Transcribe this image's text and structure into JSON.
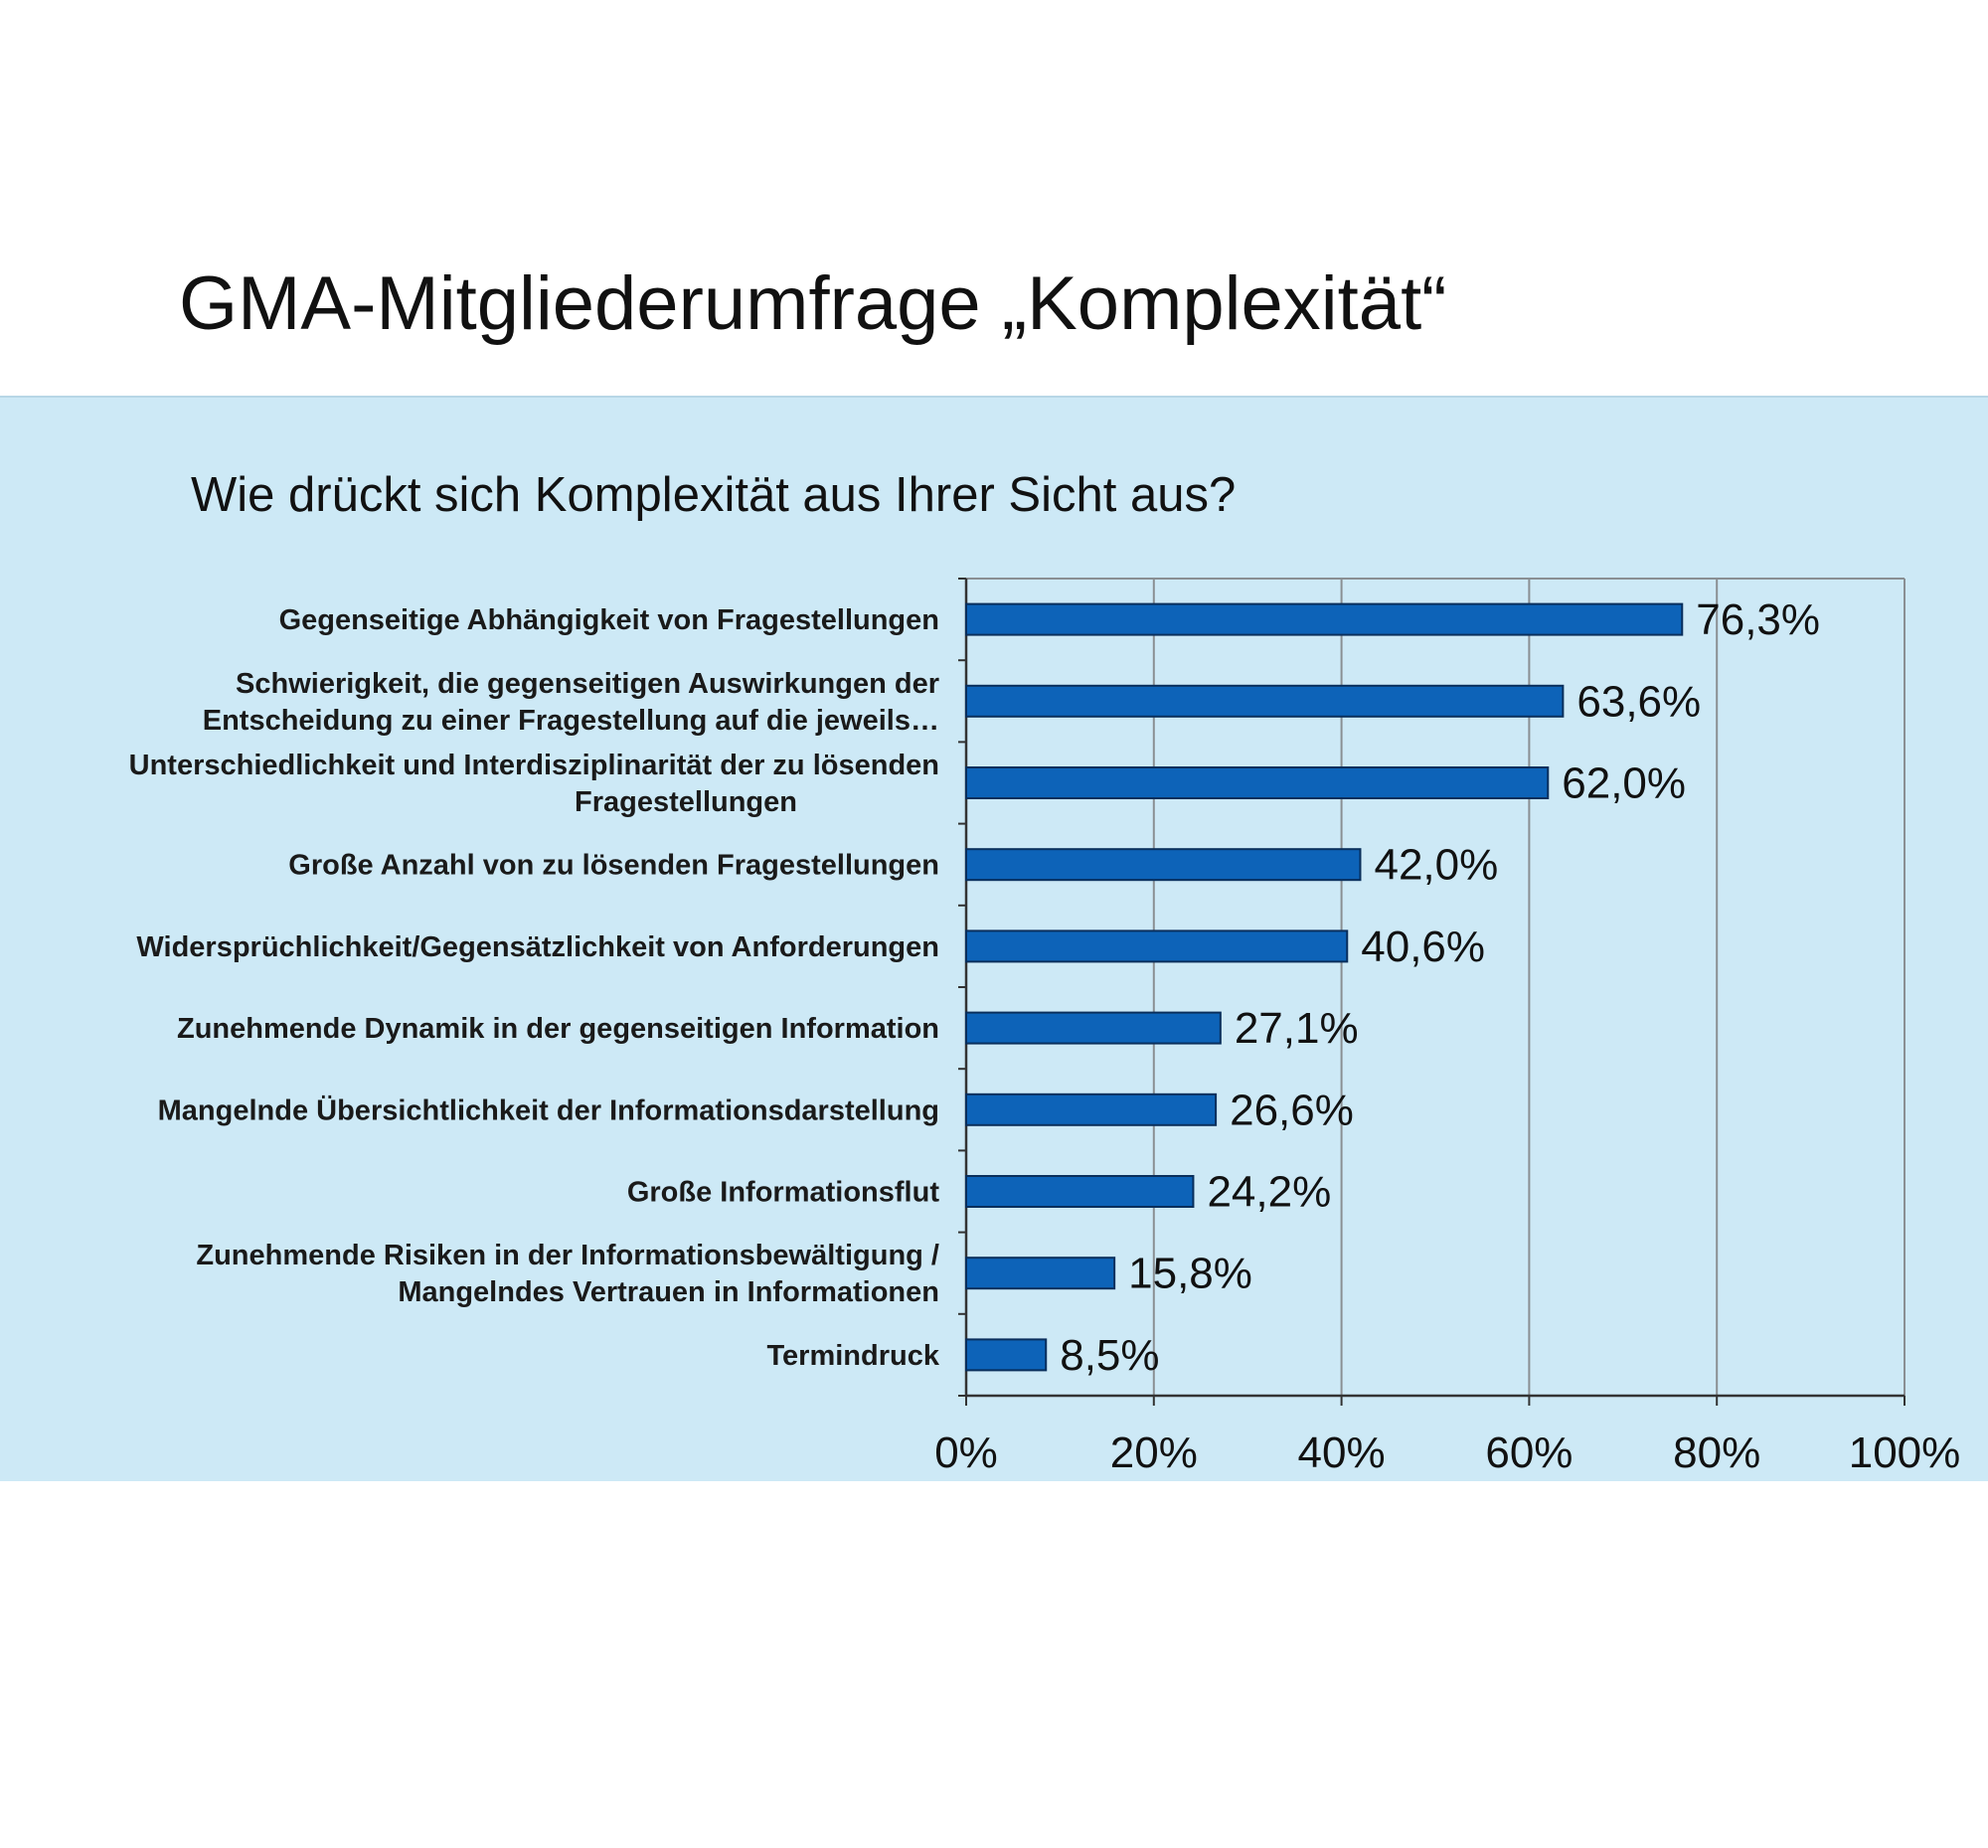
{
  "slide_title": "GMA-Mitgliederumfrage „Komplexität“",
  "chart_data": {
    "type": "bar",
    "orientation": "horizontal",
    "title": "Wie drückt sich Komplexität aus Ihrer Sicht aus?",
    "categories": [
      [
        "Gegenseitige Abhängigkeit von Fragestellungen"
      ],
      [
        "Schwierigkeit, die gegenseitigen Auswirkungen der",
        "Entscheidung zu einer Fragestellung auf die jeweils…"
      ],
      [
        "Unterschiedlichkeit und Interdisziplinarität der zu lösenden",
        "Fragestellungen"
      ],
      [
        "Große Anzahl von zu lösenden Fragestellungen"
      ],
      [
        "Widersprüchlichkeit/Gegensätzlichkeit von Anforderungen"
      ],
      [
        "Zunehmende Dynamik in der gegenseitigen Information"
      ],
      [
        "Mangelnde Übersichtlichkeit der Informationsdarstellung"
      ],
      [
        "Große Informationsflut"
      ],
      [
        "Zunehmende Risiken in der Informationsbewältigung /",
        "Mangelndes Vertrauen in Informationen"
      ],
      [
        "Termindruck"
      ]
    ],
    "values": [
      76.3,
      63.6,
      62.0,
      42.0,
      40.6,
      27.1,
      26.6,
      24.2,
      15.8,
      8.5
    ],
    "value_labels": [
      "76,3%",
      "63,6%",
      "62,0%",
      "42,0%",
      "40,6%",
      "27,1%",
      "26,6%",
      "24,2%",
      "15,8%",
      "8,5%"
    ],
    "xlim": [
      0,
      100
    ],
    "xticks": [
      0,
      20,
      40,
      60,
      80,
      100
    ],
    "xtick_labels": [
      "0%",
      "20%",
      "40%",
      "60%",
      "80%",
      "100%"
    ],
    "grid": "vertical",
    "bar_color": "#0d63b8",
    "bar_edge_color": "#0a2f5c",
    "background_color": "#cde9f6"
  }
}
